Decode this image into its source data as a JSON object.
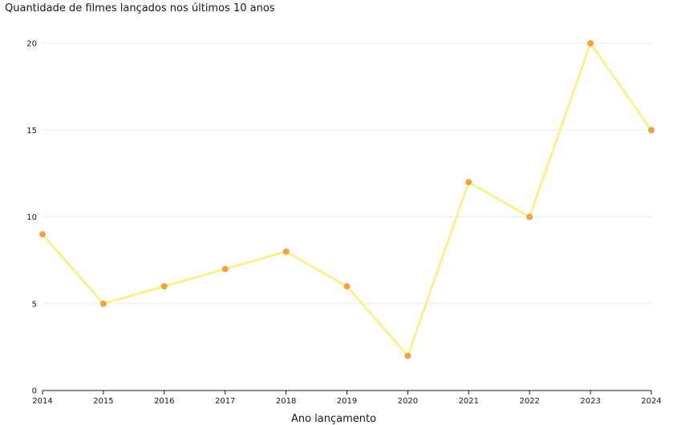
{
  "chart_data": {
    "type": "line",
    "title": "Quantidade de filmes lançados nos últimos 10 anos",
    "xlabel": "Ano lançamento",
    "ylabel": "",
    "categories": [
      "2014",
      "2015",
      "2016",
      "2017",
      "2018",
      "2019",
      "2020",
      "2021",
      "2022",
      "2023",
      "2024"
    ],
    "series": [
      {
        "values": [
          9,
          5,
          6,
          7,
          8,
          6,
          2,
          12,
          10,
          20,
          15
        ],
        "line_color": "#fbee7e",
        "marker_color": "#f1a244"
      }
    ],
    "ylim": [
      0,
      20
    ],
    "yticks": [
      0,
      5,
      10,
      15,
      20
    ],
    "grid": true,
    "legend": "none",
    "gridline_color": "#e9ebed",
    "axis_color": "#16191f"
  }
}
